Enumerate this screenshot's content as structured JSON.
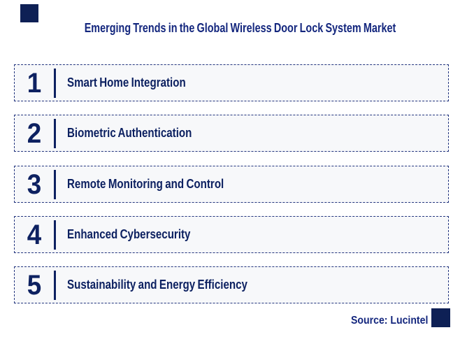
{
  "page": {
    "title": "Emerging Trends in the Global Wireless Door Lock System Market",
    "source_label": "Source: Lucintel"
  },
  "trends": [
    {
      "number": "1",
      "label": "Smart Home Integration"
    },
    {
      "number": "2",
      "label": "Biometric Authentication"
    },
    {
      "number": "3",
      "label": "Remote Monitoring and Control"
    },
    {
      "number": "4",
      "label": "Enhanced Cybersecurity"
    },
    {
      "number": "5",
      "label": "Sustainability and Energy Efficiency"
    }
  ],
  "colors": {
    "title_navy": "#14277e",
    "text_navy": "#0d2161",
    "dashed_border_navy": "#23357e",
    "corner_square_navy": "#0e2055",
    "box_background": "#f7f8fa",
    "page_background": "#ffffff"
  }
}
